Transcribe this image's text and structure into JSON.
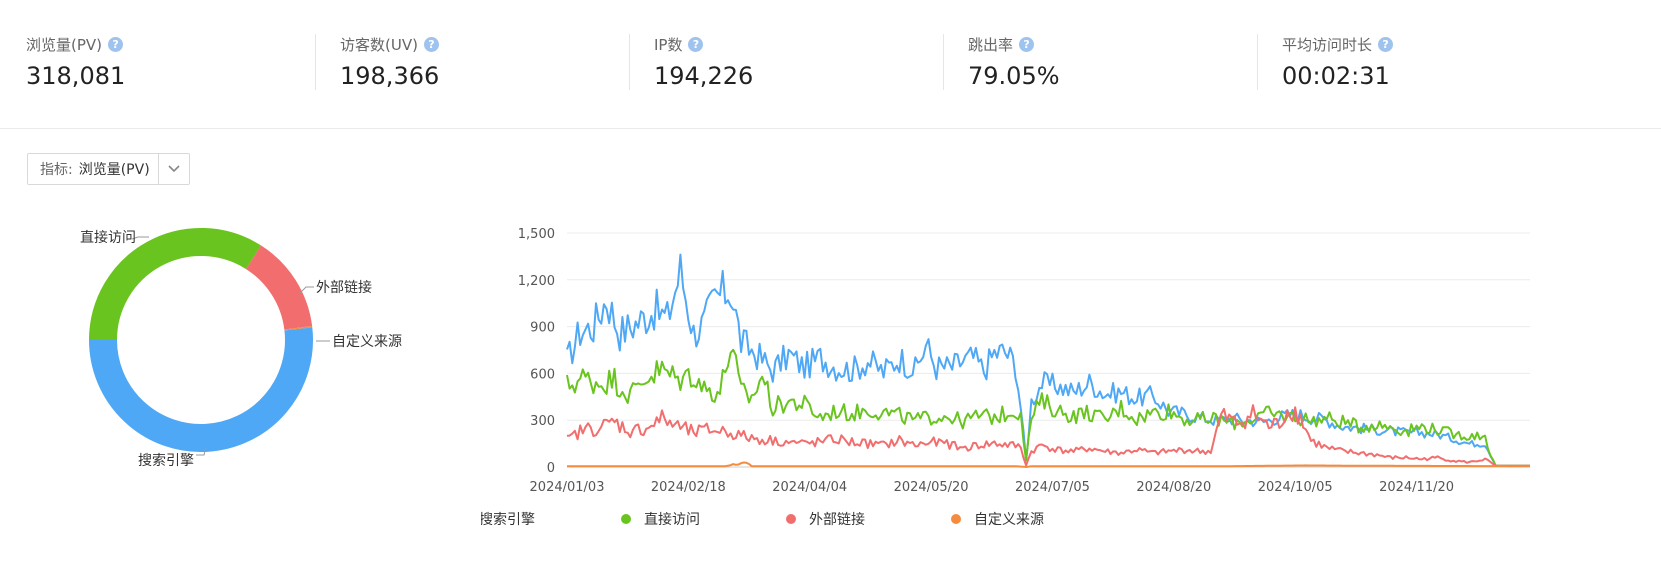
{
  "metrics": [
    {
      "label": "浏览量(PV)",
      "value": "318,081"
    },
    {
      "label": "访客数(UV)",
      "value": "198,366"
    },
    {
      "label": "IP数",
      "value": "194,226"
    },
    {
      "label": "跳出率",
      "value": "79.05%"
    },
    {
      "label": "平均访问时长",
      "value": "00:02:31"
    }
  ],
  "help_glyph": "?",
  "selector": {
    "prefix": "指标:",
    "value": "浏览量(PV)"
  },
  "colors": {
    "search": "#4fa8f5",
    "direct": "#6ac41f",
    "external": "#f26e6e",
    "custom": "#f68b3e"
  },
  "chart_data": [
    {
      "type": "pie",
      "variant": "donut",
      "labels": [
        "直接访问",
        "外部链接",
        "自定义来源",
        "搜索引擎"
      ],
      "values": [
        34,
        14,
        0.2,
        51.8
      ]
    },
    {
      "type": "line",
      "x_ticks": [
        "2024/01/03",
        "2024/02/18",
        "2024/04/04",
        "2024/05/20",
        "2024/07/05",
        "2024/08/20",
        "2024/10/05",
        "2024/11/20"
      ],
      "xlim": [
        "2024/01/03",
        "2024/12/31"
      ],
      "y_ticks": [
        "0",
        "300",
        "600",
        "900",
        "1,200",
        "1,500"
      ],
      "ylim": [
        0,
        1500
      ],
      "grid": true,
      "legend_position": "bottom",
      "series": [
        {
          "name": "搜索引擎",
          "anchors": [
            [
              0,
              680
            ],
            [
              5,
              870
            ],
            [
              10,
              900
            ],
            [
              15,
              1080
            ],
            [
              20,
              860
            ],
            [
              27,
              930
            ],
            [
              33,
              1010
            ],
            [
              38,
              950
            ],
            [
              43,
              1260
            ],
            [
              48,
              860
            ],
            [
              52,
              920
            ],
            [
              56,
              1080
            ],
            [
              62,
              1140
            ],
            [
              66,
              800
            ],
            [
              72,
              720
            ],
            [
              78,
              620
            ],
            [
              84,
              720
            ],
            [
              90,
              640
            ],
            [
              96,
              700
            ],
            [
              102,
              640
            ],
            [
              108,
              620
            ],
            [
              114,
              680
            ],
            [
              120,
              610
            ],
            [
              126,
              700
            ],
            [
              132,
              620
            ],
            [
              136,
              780
            ],
            [
              140,
              640
            ],
            [
              146,
              640
            ],
            [
              150,
              680
            ],
            [
              154,
              700
            ],
            [
              158,
              620
            ],
            [
              162,
              730
            ],
            [
              166,
              740
            ],
            [
              170,
              660
            ],
            [
              172,
              380
            ],
            [
              174,
              40
            ],
            [
              176,
              420
            ],
            [
              180,
              540
            ],
            [
              186,
              520
            ],
            [
              192,
              480
            ],
            [
              198,
              540
            ],
            [
              204,
              470
            ],
            [
              210,
              480
            ],
            [
              216,
              440
            ],
            [
              222,
              460
            ],
            [
              228,
              360
            ],
            [
              234,
              340
            ],
            [
              240,
              320
            ],
            [
              246,
              300
            ],
            [
              252,
              310
            ],
            [
              258,
              300
            ],
            [
              264,
              290
            ],
            [
              270,
              320
            ],
            [
              276,
              340
            ],
            [
              282,
              320
            ],
            [
              288,
              300
            ],
            [
              294,
              260
            ],
            [
              300,
              250
            ],
            [
              306,
              240
            ],
            [
              312,
              230
            ],
            [
              318,
              220
            ],
            [
              324,
              220
            ],
            [
              330,
              210
            ],
            [
              336,
              180
            ],
            [
              342,
              150
            ],
            [
              348,
              150
            ],
            [
              350,
              80
            ],
            [
              352,
              8
            ],
            [
              366,
              8
            ]
          ]
        },
        {
          "name": "直接访问",
          "anchors": [
            [
              0,
              520
            ],
            [
              6,
              570
            ],
            [
              12,
              540
            ],
            [
              18,
              560
            ],
            [
              24,
              460
            ],
            [
              30,
              580
            ],
            [
              36,
              620
            ],
            [
              42,
              560
            ],
            [
              48,
              600
            ],
            [
              52,
              500
            ],
            [
              58,
              480
            ],
            [
              62,
              780
            ],
            [
              66,
              480
            ],
            [
              70,
              440
            ],
            [
              74,
              590
            ],
            [
              78,
              380
            ],
            [
              84,
              420
            ],
            [
              90,
              400
            ],
            [
              96,
              320
            ],
            [
              102,
              360
            ],
            [
              108,
              340
            ],
            [
              114,
              370
            ],
            [
              120,
              350
            ],
            [
              126,
              330
            ],
            [
              132,
              300
            ],
            [
              138,
              320
            ],
            [
              144,
              330
            ],
            [
              150,
              290
            ],
            [
              156,
              330
            ],
            [
              162,
              320
            ],
            [
              168,
              350
            ],
            [
              172,
              360
            ],
            [
              174,
              40
            ],
            [
              176,
              320
            ],
            [
              180,
              420
            ],
            [
              186,
              360
            ],
            [
              192,
              330
            ],
            [
              198,
              350
            ],
            [
              204,
              300
            ],
            [
              210,
              380
            ],
            [
              216,
              310
            ],
            [
              222,
              350
            ],
            [
              228,
              360
            ],
            [
              234,
              310
            ],
            [
              240,
              300
            ],
            [
              246,
              310
            ],
            [
              252,
              280
            ],
            [
              258,
              300
            ],
            [
              264,
              340
            ],
            [
              270,
              330
            ],
            [
              276,
              320
            ],
            [
              282,
              300
            ],
            [
              288,
              310
            ],
            [
              294,
              290
            ],
            [
              300,
              260
            ],
            [
              306,
              270
            ],
            [
              312,
              260
            ],
            [
              318,
              230
            ],
            [
              324,
              260
            ],
            [
              330,
              240
            ],
            [
              336,
              210
            ],
            [
              342,
              200
            ],
            [
              348,
              200
            ],
            [
              350,
              80
            ],
            [
              352,
              8
            ],
            [
              366,
              8
            ]
          ]
        },
        {
          "name": "外部链接",
          "anchors": [
            [
              0,
              170
            ],
            [
              6,
              240
            ],
            [
              12,
              250
            ],
            [
              18,
              290
            ],
            [
              24,
              230
            ],
            [
              30,
              250
            ],
            [
              36,
              310
            ],
            [
              42,
              260
            ],
            [
              48,
              220
            ],
            [
              54,
              240
            ],
            [
              60,
              230
            ],
            [
              66,
              200
            ],
            [
              72,
              180
            ],
            [
              78,
              170
            ],
            [
              84,
              160
            ],
            [
              90,
              150
            ],
            [
              96,
              160
            ],
            [
              102,
              180
            ],
            [
              108,
              160
            ],
            [
              114,
              150
            ],
            [
              120,
              140
            ],
            [
              126,
              170
            ],
            [
              132,
              140
            ],
            [
              138,
              160
            ],
            [
              144,
              150
            ],
            [
              150,
              120
            ],
            [
              156,
              140
            ],
            [
              162,
              150
            ],
            [
              168,
              140
            ],
            [
              172,
              130
            ],
            [
              174,
              10
            ],
            [
              176,
              100
            ],
            [
              180,
              140
            ],
            [
              186,
              110
            ],
            [
              192,
              100
            ],
            [
              198,
              120
            ],
            [
              204,
              100
            ],
            [
              210,
              90
            ],
            [
              216,
              110
            ],
            [
              222,
              90
            ],
            [
              228,
              100
            ],
            [
              234,
              110
            ],
            [
              240,
              100
            ],
            [
              244,
              100
            ],
            [
              248,
              330
            ],
            [
              254,
              280
            ],
            [
              260,
              340
            ],
            [
              266,
              260
            ],
            [
              270,
              280
            ],
            [
              274,
              380
            ],
            [
              278,
              320
            ],
            [
              282,
              170
            ],
            [
              288,
              120
            ],
            [
              294,
              100
            ],
            [
              300,
              90
            ],
            [
              306,
              80
            ],
            [
              312,
              60
            ],
            [
              318,
              60
            ],
            [
              324,
              50
            ],
            [
              330,
              60
            ],
            [
              336,
              40
            ],
            [
              342,
              30
            ],
            [
              348,
              50
            ],
            [
              352,
              8
            ],
            [
              366,
              8
            ]
          ]
        },
        {
          "name": "自定义来源",
          "anchors": [
            [
              0,
              5
            ],
            [
              60,
              5
            ],
            [
              68,
              30
            ],
            [
              70,
              5
            ],
            [
              170,
              5
            ],
            [
              174,
              0
            ],
            [
              176,
              5
            ],
            [
              250,
              5
            ],
            [
              280,
              10
            ],
            [
              300,
              8
            ],
            [
              366,
              5
            ]
          ]
        }
      ]
    }
  ]
}
